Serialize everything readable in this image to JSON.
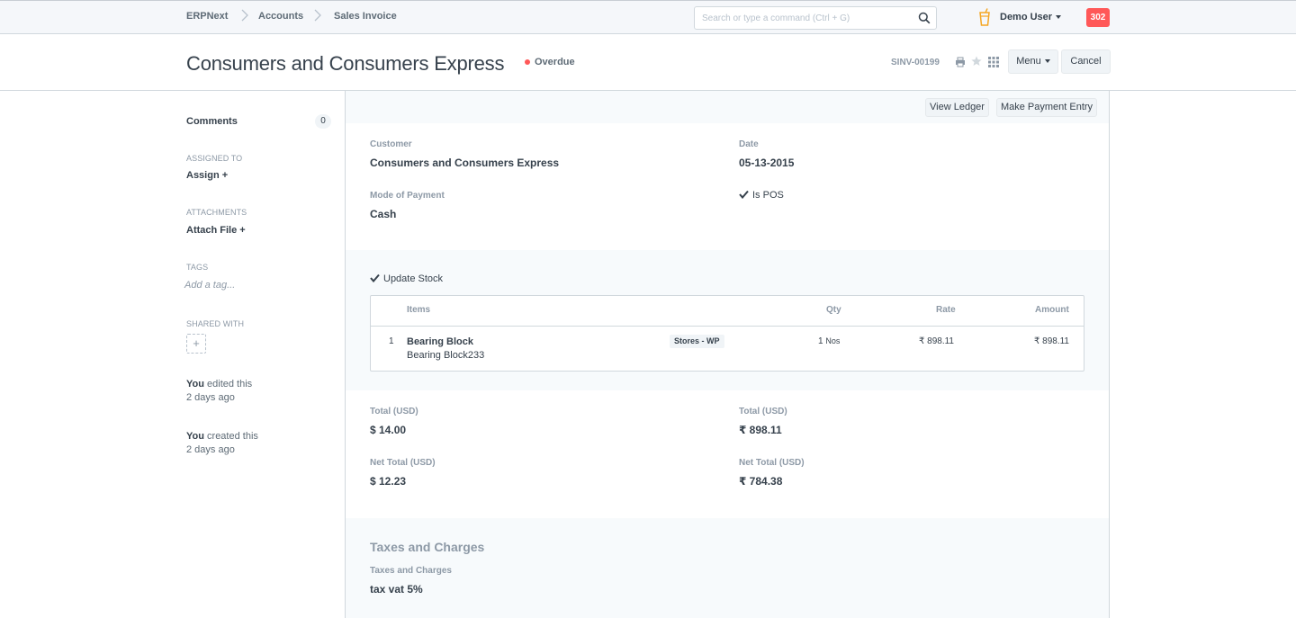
{
  "navbar": {
    "breadcrumbs": [
      "ERPNext",
      "Accounts",
      "Sales Invoice"
    ],
    "search_placeholder": "Search or type a command (Ctrl + G)",
    "user_name": "Demo User",
    "notification_count": "302"
  },
  "page_head": {
    "title": "Consumers and Consumers Express",
    "status": "Overdue",
    "doc_id": "SINV-00199",
    "menu_label": "Menu",
    "cancel_label": "Cancel"
  },
  "sidebar": {
    "comments_label": "Comments",
    "comments_count": "0",
    "assigned_to_label": "ASSIGNED TO",
    "assign_action": "Assign +",
    "attachments_label": "ATTACHMENTS",
    "attach_action": "Attach File +",
    "tags_label": "TAGS",
    "tag_placeholder": "Add a tag...",
    "shared_with_label": "SHARED WITH",
    "share_add": "+",
    "timeline": [
      {
        "who": "You",
        "action": " edited this",
        "when": "2 days ago"
      },
      {
        "who": "You",
        "action": " created this",
        "when": "2 days ago"
      }
    ]
  },
  "actions": {
    "view_ledger": "View Ledger",
    "make_payment": "Make Payment Entry"
  },
  "details": {
    "customer_label": "Customer",
    "customer_value": "Consumers and Consumers Express",
    "date_label": "Date",
    "date_value": "05-13-2015",
    "mode_of_payment_label": "Mode of Payment",
    "mode_of_payment_value": "Cash",
    "is_pos_label": "Is POS"
  },
  "items": {
    "update_stock_label": "Update Stock",
    "columns": {
      "items": "Items",
      "qty": "Qty",
      "rate": "Rate",
      "amount": "Amount"
    },
    "rows": [
      {
        "idx": "1",
        "item_name": "Bearing Block",
        "item_desc": "Bearing Block233",
        "warehouse": "Stores - WP",
        "qty": "1",
        "uom": "Nos",
        "rate": "₹ 898.11",
        "amount": "₹ 898.11"
      }
    ]
  },
  "totals": {
    "total_usd_label": "Total (USD)",
    "total_usd_value": "$ 14.00",
    "total_inr_label": "Total (USD)",
    "total_inr_value": "₹ 898.11",
    "net_total_usd_label": "Net Total (USD)",
    "net_total_usd_value": "$ 12.23",
    "net_total_inr_label": "Net Total (USD)",
    "net_total_inr_value": "₹ 784.38"
  },
  "taxes": {
    "section_title": "Taxes and Charges",
    "field_label": "Taxes and Charges",
    "field_value": "tax vat 5%"
  },
  "colors": {
    "status_overdue": "#ff5858",
    "notification_badge": "#ff5858",
    "user_icon": "#f5a623"
  }
}
